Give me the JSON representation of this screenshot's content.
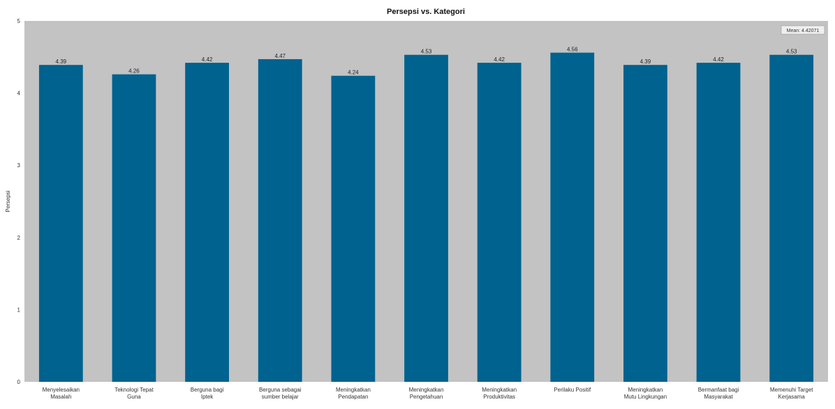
{
  "chart_data": {
    "type": "bar",
    "title": "Persepsi vs. Kategori",
    "xlabel": "",
    "ylabel": "Persepsi",
    "ylim": [
      0,
      5
    ],
    "yticks": [
      "0",
      "1",
      "2",
      "3",
      "4",
      "5"
    ],
    "categories": [
      "Menyelesaikan Masalah",
      "Teknologi Tepat Guna",
      "Berguna bagi Iptek",
      "Berguna sebagai sumber belajar",
      "Meningkatkan Pendapatan",
      "Meningkatkan Pengetahuan",
      "Meningkatkan Produktivitas",
      "Perilaku Positif",
      "Meningkatkan Mutu Lingkungan",
      "Bermanfaat bagi Masyarakat",
      "Memenuhi Target Kerjasama"
    ],
    "values": [
      4.39,
      4.26,
      4.42,
      4.47,
      4.24,
      4.53,
      4.42,
      4.56,
      4.39,
      4.42,
      4.53
    ],
    "value_labels": [
      "4.39",
      "4.26",
      "4.42",
      "4.47",
      "4.24",
      "4.53",
      "4.42",
      "4.56",
      "4.39",
      "4.42",
      "4.53"
    ],
    "legend": {
      "text": "Mean: 4.42071",
      "placement": "top-right"
    },
    "grid": false,
    "colors": {
      "bar": "#00628f",
      "plot_bg": "#c3c3c3"
    }
  }
}
